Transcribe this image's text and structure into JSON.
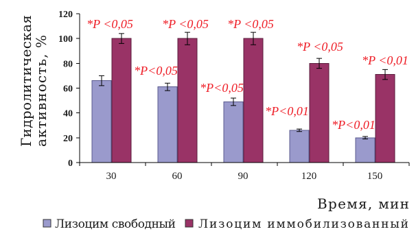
{
  "chart_data": {
    "type": "bar",
    "xlabel": "Время, мин",
    "ylabel": [
      "Гидролитическая",
      "активность, %"
    ],
    "ylim": [
      0,
      120
    ],
    "yticks": [
      0,
      20,
      40,
      60,
      80,
      100,
      120
    ],
    "categories": [
      "30",
      "60",
      "90",
      "120",
      "150"
    ],
    "series": [
      {
        "name": "Лизоцим свободный",
        "color": "#9a9acc",
        "values": [
          66,
          61,
          49,
          26,
          20
        ],
        "errors": [
          4,
          3,
          3,
          1,
          1
        ],
        "annotations": [
          null,
          "*P<0,05",
          "*P<0,05",
          "*P<0,01",
          "*P<0,01"
        ]
      },
      {
        "name": "Лизоцим иммобилизованный",
        "color": "#993366",
        "values": [
          100,
          100,
          100,
          80,
          71
        ],
        "errors": [
          4,
          5,
          5,
          4,
          4
        ],
        "annotations": [
          "*P <0,05",
          "*P <0,05",
          "*P <0,05",
          "*P <0,05",
          "*P <0,01"
        ]
      }
    ],
    "legend": "bottom",
    "grid": false
  },
  "colors": {
    "annotation_text": "#ee1c25"
  }
}
